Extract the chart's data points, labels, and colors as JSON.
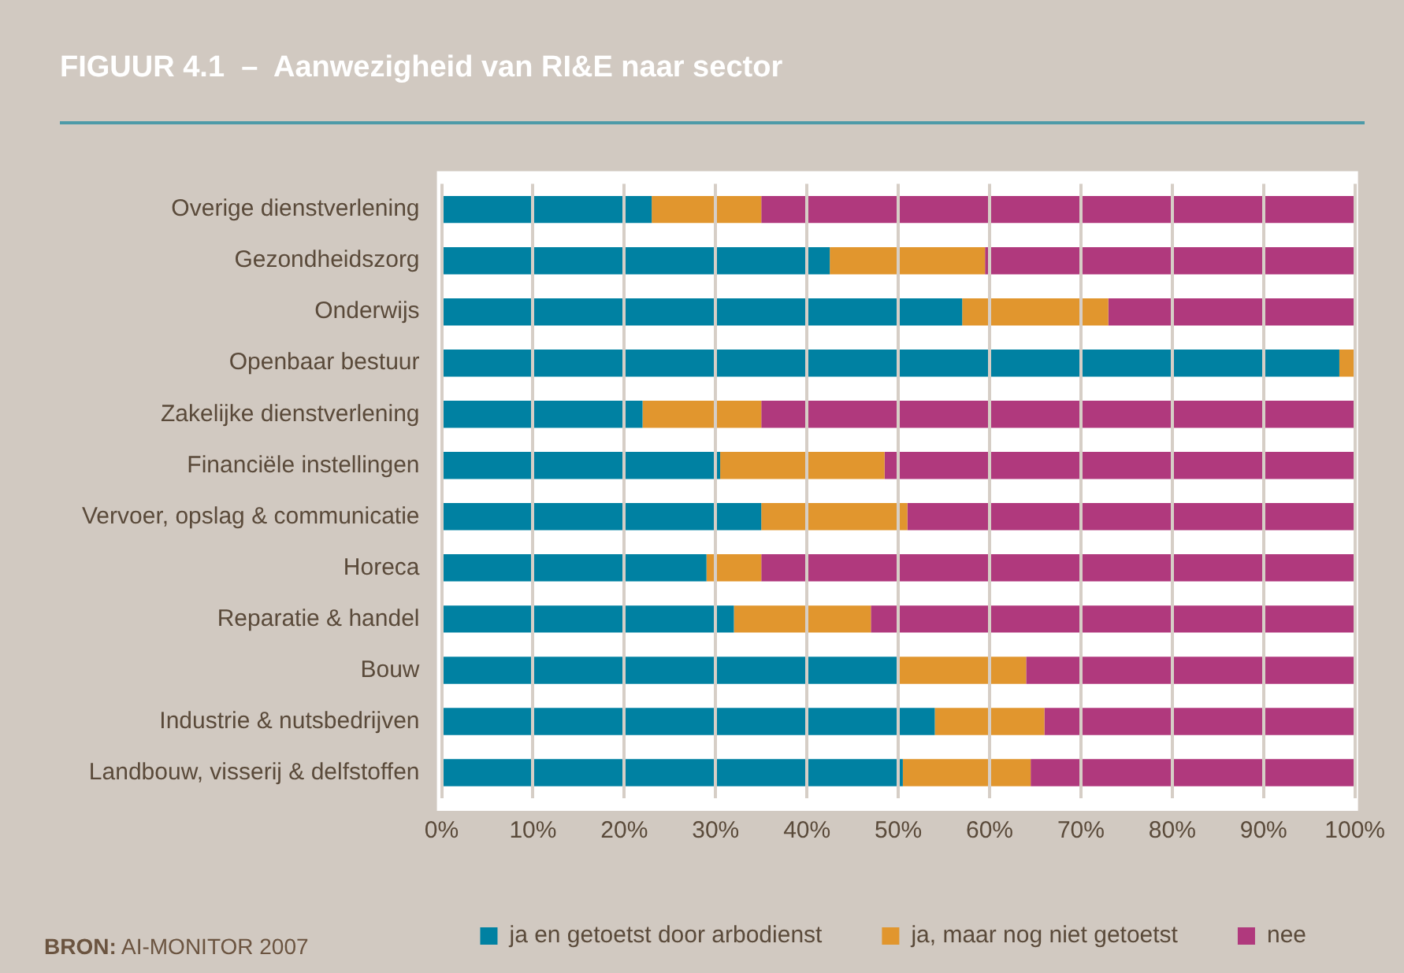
{
  "chart_data": {
    "type": "bar",
    "orientation": "horizontal",
    "stacked": true,
    "title": "FIGUUR 4.1  –  Aanwezigheid van RI&E naar sector",
    "categories": [
      "Overige dienstverlening",
      "Gezondheidszorg",
      "Onderwijs",
      "Openbaar bestuur",
      "Zakelijke dienstverlening",
      "Financiële instellingen",
      "Vervoer, opslag & communicatie",
      "Horeca",
      "Reparatie & handel",
      "Bouw",
      "Industrie & nutsbedrijven",
      "Landbouw, visserij & delfstoffen"
    ],
    "series": [
      {
        "name": "ja en getoetst door arbodienst",
        "color": "#0081a2",
        "values": [
          23,
          42.5,
          57,
          98.3,
          22,
          30.5,
          35,
          29,
          32,
          50,
          54,
          50.5
        ]
      },
      {
        "name": "ja, maar nog niet getoetst",
        "color": "#e1962e",
        "values": [
          12,
          17,
          16,
          1.7,
          13,
          18,
          16,
          6,
          15,
          14,
          12,
          14
        ]
      },
      {
        "name": "nee",
        "color": "#b0397d",
        "values": [
          65,
          40.5,
          27,
          0,
          65,
          51.5,
          49,
          65,
          53,
          36,
          34,
          35.5
        ]
      }
    ],
    "xlim": [
      0,
      100
    ],
    "xticks": [
      {
        "value": 0,
        "label": "0%"
      },
      {
        "value": 10,
        "label": "10%"
      },
      {
        "value": 20,
        "label": "20%"
      },
      {
        "value": 30,
        "label": "30%"
      },
      {
        "value": 40,
        "label": "40%"
      },
      {
        "value": 50,
        "label": "50%"
      },
      {
        "value": 60,
        "label": "60%"
      },
      {
        "value": 70,
        "label": "70%"
      },
      {
        "value": 80,
        "label": "80%"
      },
      {
        "value": 90,
        "label": "90%"
      },
      {
        "value": 100,
        "label": "100%"
      }
    ],
    "grid": "x",
    "legend": "bottom",
    "annotations": [
      "BRON: AI-MONITOR 2007"
    ]
  }
}
